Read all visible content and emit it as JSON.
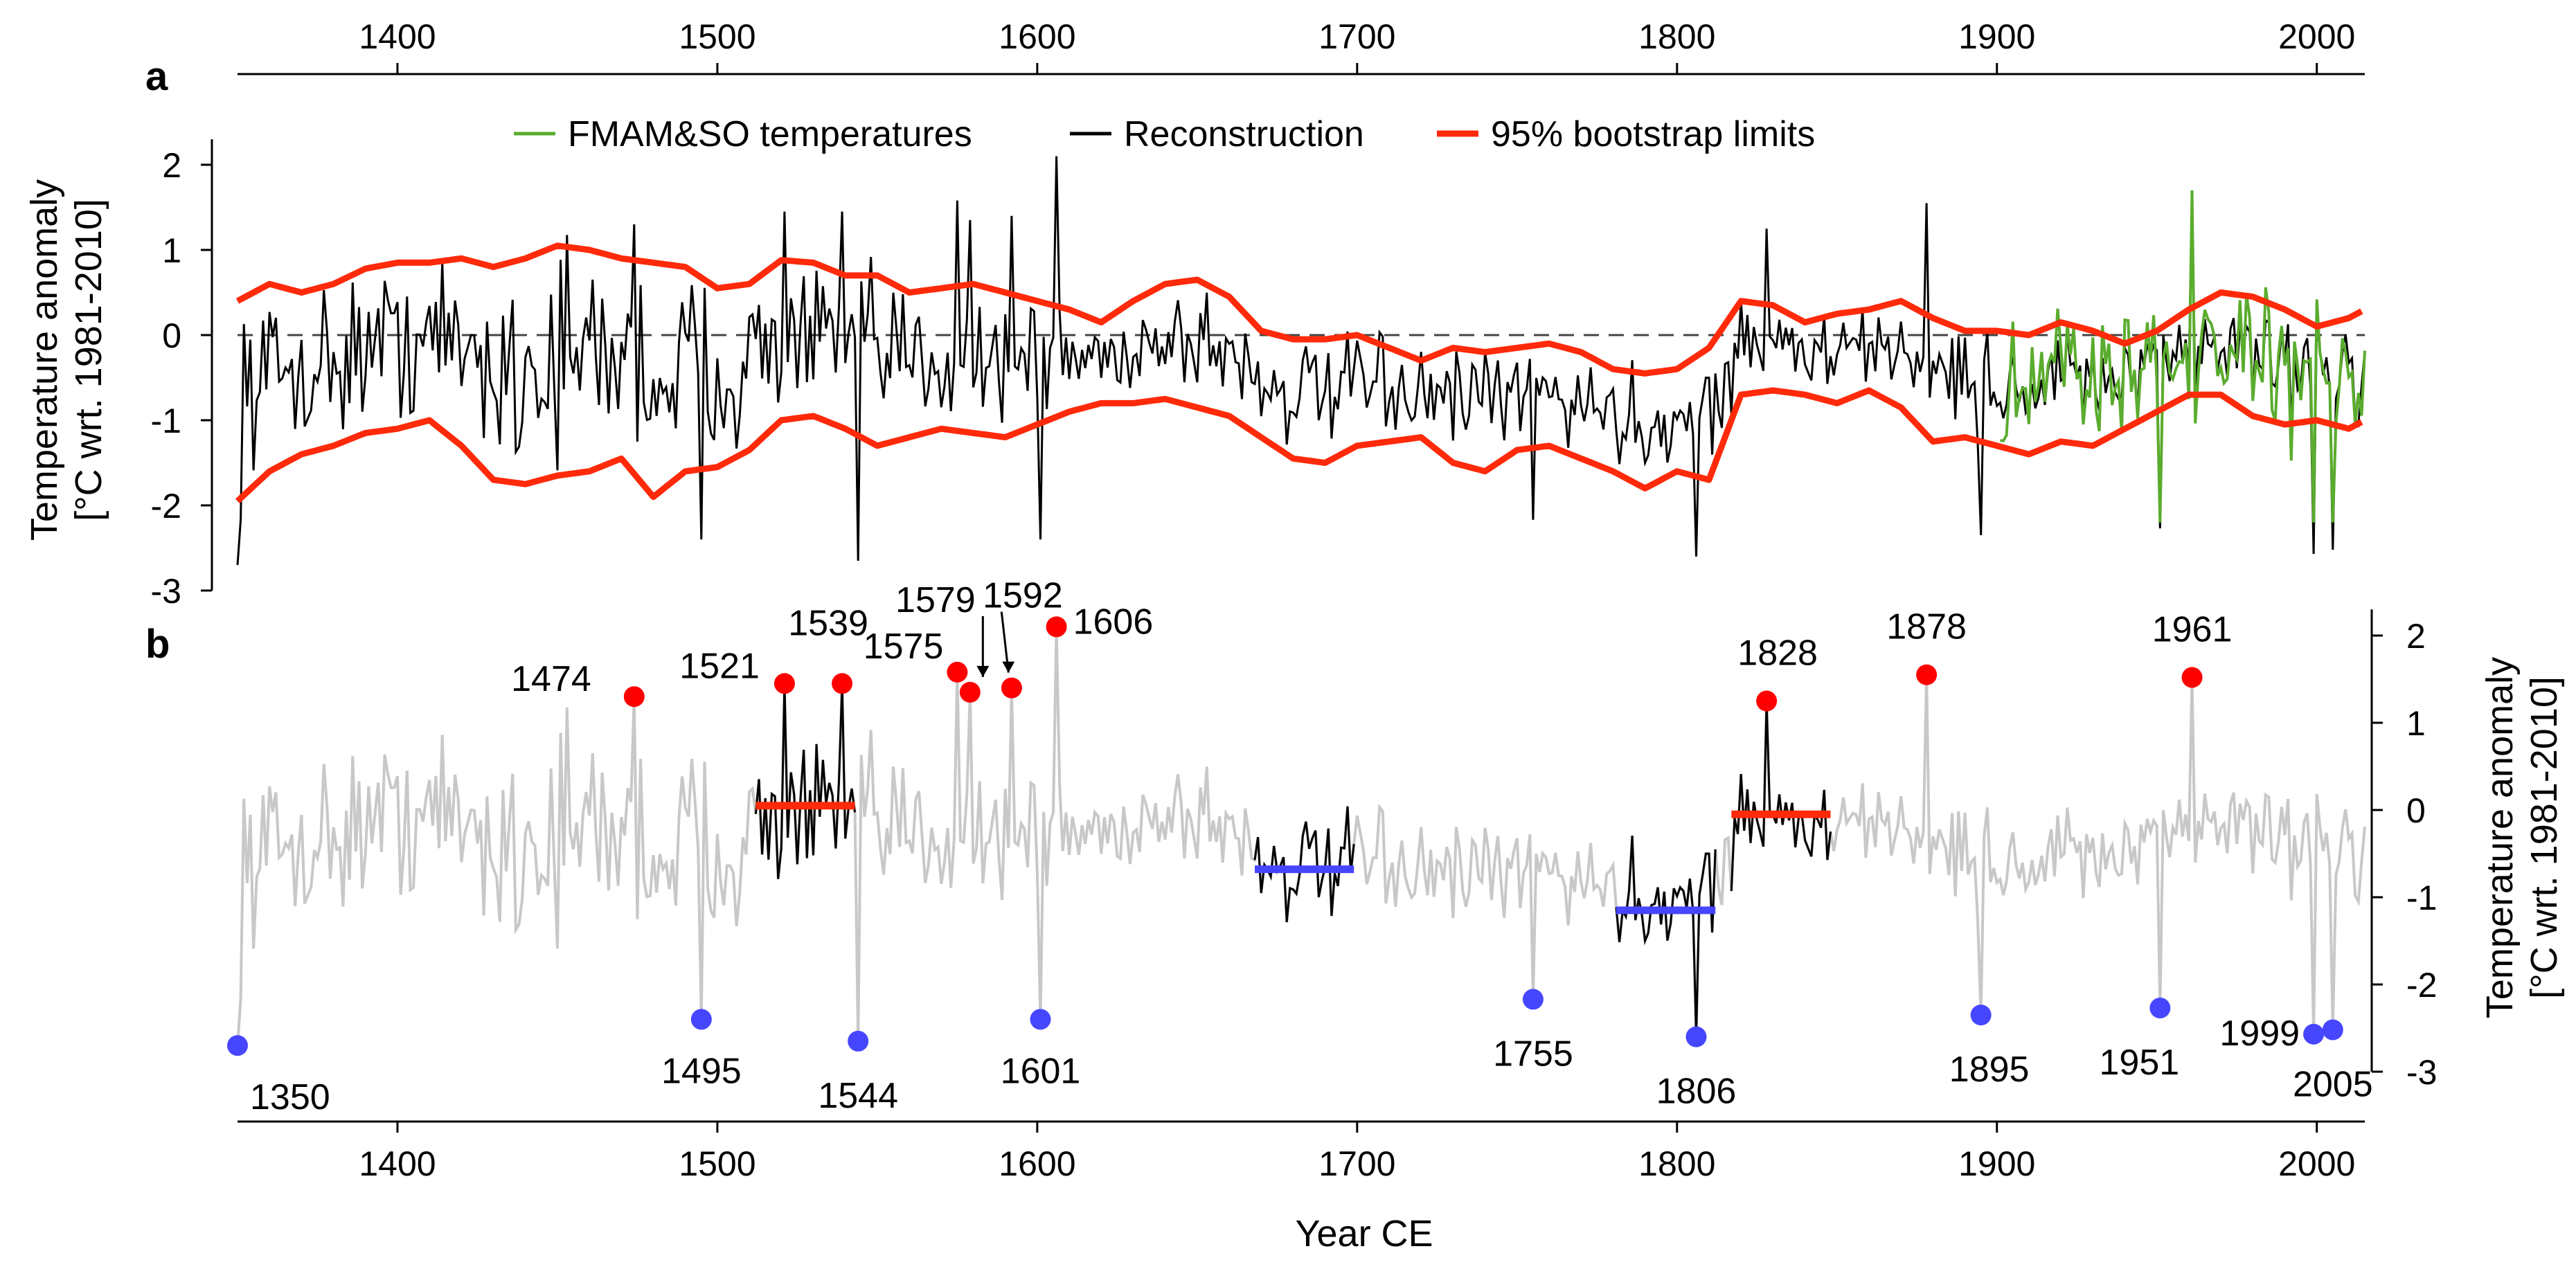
{
  "figure": {
    "x_axis_title": "Year CE",
    "panel_a_label": "a",
    "panel_b_label": "b"
  },
  "chart_data": [
    {
      "panel": "a",
      "type": "line",
      "title": "",
      "xlabel": "Year CE",
      "ylabel_line1": "Temperature anomaly",
      "ylabel_line2": "[°C wrt. 1981-2010]",
      "xlim": [
        1350,
        2015
      ],
      "ylim": [
        -3,
        2.3
      ],
      "x_ticks": [
        "1400",
        "1500",
        "1600",
        "1700",
        "1800",
        "1900",
        "2000"
      ],
      "y_ticks": [
        "-3",
        "-2",
        "-1",
        "0",
        "1",
        "2"
      ],
      "zero_line": "dashed",
      "legend": [
        {
          "label": "FMAM&SO temperatures",
          "color": "#5aac2e"
        },
        {
          "label": "Reconstruction",
          "color": "#000000"
        },
        {
          "label": "95% bootstrap limits",
          "color": "#ff2a0a"
        }
      ],
      "series": [
        {
          "name": "95% bootstrap limits (upper)",
          "color": "#ff2a0a",
          "x": [
            1350,
            1360,
            1370,
            1380,
            1390,
            1400,
            1410,
            1420,
            1430,
            1440,
            1450,
            1460,
            1470,
            1480,
            1490,
            1500,
            1510,
            1520,
            1530,
            1540,
            1550,
            1560,
            1570,
            1580,
            1590,
            1600,
            1610,
            1620,
            1630,
            1640,
            1650,
            1660,
            1670,
            1680,
            1690,
            1700,
            1710,
            1720,
            1730,
            1740,
            1750,
            1760,
            1770,
            1780,
            1790,
            1800,
            1810,
            1820,
            1830,
            1840,
            1850,
            1860,
            1870,
            1880,
            1890,
            1900,
            1910,
            1920,
            1930,
            1940,
            1950,
            1960,
            1970,
            1980,
            1990,
            2000,
            2010,
            2015
          ],
          "y": [
            0.4,
            0.6,
            0.5,
            0.6,
            0.78,
            0.85,
            0.85,
            0.9,
            0.8,
            0.9,
            1.05,
            1.0,
            0.9,
            0.85,
            0.8,
            0.55,
            0.6,
            0.88,
            0.85,
            0.7,
            0.7,
            0.5,
            0.55,
            0.6,
            0.5,
            0.4,
            0.3,
            0.15,
            0.4,
            0.6,
            0.65,
            0.45,
            0.05,
            -0.05,
            -0.05,
            0.0,
            -0.15,
            -0.3,
            -0.15,
            -0.2,
            -0.15,
            -0.1,
            -0.2,
            -0.4,
            -0.45,
            -0.4,
            -0.15,
            0.4,
            0.35,
            0.15,
            0.25,
            0.3,
            0.4,
            0.2,
            0.05,
            0.05,
            0.0,
            0.15,
            0.05,
            -0.1,
            0.05,
            0.3,
            0.5,
            0.45,
            0.3,
            0.1,
            0.2,
            0.3
          ]
        },
        {
          "name": "95% bootstrap limits (lower)",
          "color": "#ff2a0a",
          "x": [
            1350,
            1360,
            1370,
            1380,
            1390,
            1400,
            1410,
            1420,
            1430,
            1440,
            1450,
            1460,
            1470,
            1480,
            1490,
            1500,
            1510,
            1520,
            1530,
            1540,
            1550,
            1560,
            1570,
            1580,
            1590,
            1600,
            1610,
            1620,
            1630,
            1640,
            1650,
            1660,
            1670,
            1680,
            1690,
            1700,
            1710,
            1720,
            1730,
            1740,
            1750,
            1760,
            1770,
            1780,
            1790,
            1800,
            1810,
            1820,
            1830,
            1840,
            1850,
            1860,
            1870,
            1880,
            1890,
            1900,
            1910,
            1920,
            1930,
            1940,
            1950,
            1960,
            1970,
            1980,
            1990,
            2000,
            2010,
            2015
          ],
          "y": [
            -1.95,
            -1.6,
            -1.4,
            -1.3,
            -1.15,
            -1.1,
            -1.0,
            -1.3,
            -1.7,
            -1.75,
            -1.65,
            -1.6,
            -1.45,
            -1.9,
            -1.6,
            -1.55,
            -1.35,
            -1.0,
            -0.95,
            -1.1,
            -1.3,
            -1.2,
            -1.1,
            -1.15,
            -1.2,
            -1.05,
            -0.9,
            -0.8,
            -0.8,
            -0.75,
            -0.85,
            -0.95,
            -1.2,
            -1.45,
            -1.5,
            -1.3,
            -1.25,
            -1.2,
            -1.5,
            -1.6,
            -1.35,
            -1.3,
            -1.45,
            -1.6,
            -1.8,
            -1.6,
            -1.7,
            -0.7,
            -0.65,
            -0.7,
            -0.8,
            -0.65,
            -0.85,
            -1.25,
            -1.2,
            -1.3,
            -1.4,
            -1.25,
            -1.3,
            -1.1,
            -0.9,
            -0.7,
            -0.7,
            -0.95,
            -1.05,
            -1.0,
            -1.1,
            -1.0
          ]
        },
        {
          "name": "Reconstruction",
          "color": "#000000",
          "annual_series": "1350-2015, annual values (plotted as a noisy black line)",
          "x_range": [
            1350,
            2015
          ]
        },
        {
          "name": "FMAM&SO temperatures",
          "color": "#5aac2e",
          "annual_series": "1901-2015, annual values (plotted in green)",
          "x_range": [
            1901,
            2015
          ]
        }
      ]
    },
    {
      "panel": "b",
      "type": "line",
      "title": "",
      "xlabel": "Year CE",
      "ylabel_line1": "Temperature anomaly",
      "ylabel_line2": "[°C wrt. 1981-2010]",
      "xlim": [
        1350,
        2015
      ],
      "ylim": [
        -3,
        2.3
      ],
      "x_ticks": [
        "1400",
        "1500",
        "1600",
        "1700",
        "1800",
        "1900",
        "2000"
      ],
      "y_ticks": [
        "-3",
        "-2",
        "-1",
        "0",
        "1",
        "2"
      ],
      "background_series": {
        "name": "Reconstruction (grey)",
        "color": "#c8c8c8"
      },
      "highlighted_periods": [
        {
          "start": 1512,
          "end": 1543,
          "mean": 0.05,
          "color": "#ff2a0a"
        },
        {
          "start": 1668,
          "end": 1699,
          "mean": -0.68,
          "color": "#4646ff"
        },
        {
          "start": 1781,
          "end": 1812,
          "mean": -1.15,
          "color": "#4646ff"
        },
        {
          "start": 1817,
          "end": 1848,
          "mean": -0.05,
          "color": "#ff2a0a"
        }
      ],
      "warm_extremes": [
        {
          "year": 1474,
          "value": 1.3,
          "label": "1474"
        },
        {
          "year": 1521,
          "value": 1.45,
          "label": "1521"
        },
        {
          "year": 1539,
          "value": 1.45,
          "label": "1539"
        },
        {
          "year": 1575,
          "value": 1.58,
          "label": "1575"
        },
        {
          "year": 1579,
          "value": 1.35,
          "label": "1579"
        },
        {
          "year": 1592,
          "value": 1.4,
          "label": "1592"
        },
        {
          "year": 1606,
          "value": 2.1,
          "label": "1606"
        },
        {
          "year": 1828,
          "value": 1.25,
          "label": "1828"
        },
        {
          "year": 1878,
          "value": 1.55,
          "label": "1878"
        },
        {
          "year": 1961,
          "value": 1.52,
          "label": "1961"
        }
      ],
      "cold_extremes": [
        {
          "year": 1350,
          "value": -2.7,
          "label": "1350"
        },
        {
          "year": 1495,
          "value": -2.4,
          "label": "1495"
        },
        {
          "year": 1544,
          "value": -2.65,
          "label": "1544"
        },
        {
          "year": 1601,
          "value": -2.4,
          "label": "1601"
        },
        {
          "year": 1755,
          "value": -2.17,
          "label": "1755"
        },
        {
          "year": 1806,
          "value": -2.6,
          "label": "1806"
        },
        {
          "year": 1895,
          "value": -2.35,
          "label": "1895"
        },
        {
          "year": 1951,
          "value": -2.27,
          "label": "1951"
        },
        {
          "year": 1999,
          "value": -2.57,
          "label": "1999"
        },
        {
          "year": 2005,
          "value": -2.52,
          "label": "2005"
        }
      ],
      "warm_color": "#ff0000",
      "cold_color": "#4646ff"
    }
  ]
}
